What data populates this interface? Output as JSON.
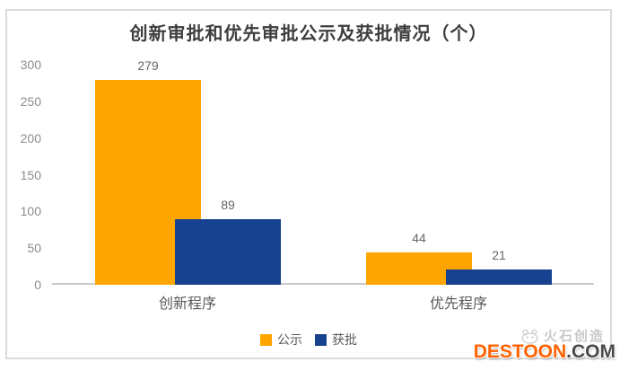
{
  "chart_data": {
    "type": "bar",
    "title": "创新审批和优先审批公示及获批情况（个）",
    "categories": [
      "创新程序",
      "优先程序"
    ],
    "series": [
      {
        "name": "公示",
        "color": "#FFA500",
        "values": [
          279,
          44
        ]
      },
      {
        "name": "获批",
        "color": "#17428F",
        "values": [
          89,
          21
        ]
      }
    ],
    "ylim": [
      0,
      300
    ],
    "yticks": [
      0,
      50,
      100,
      150,
      200,
      250,
      300
    ],
    "xlabel": "",
    "ylabel": "",
    "grid": false,
    "legend_position": "bottom"
  },
  "watermark": {
    "brand": "火石创造",
    "site_name": "DESTOON",
    "site_tld": ".COM",
    "brand_color": "#C9C9C9",
    "site_color": "#FF6200",
    "tld_color": "#4A4A4A"
  }
}
